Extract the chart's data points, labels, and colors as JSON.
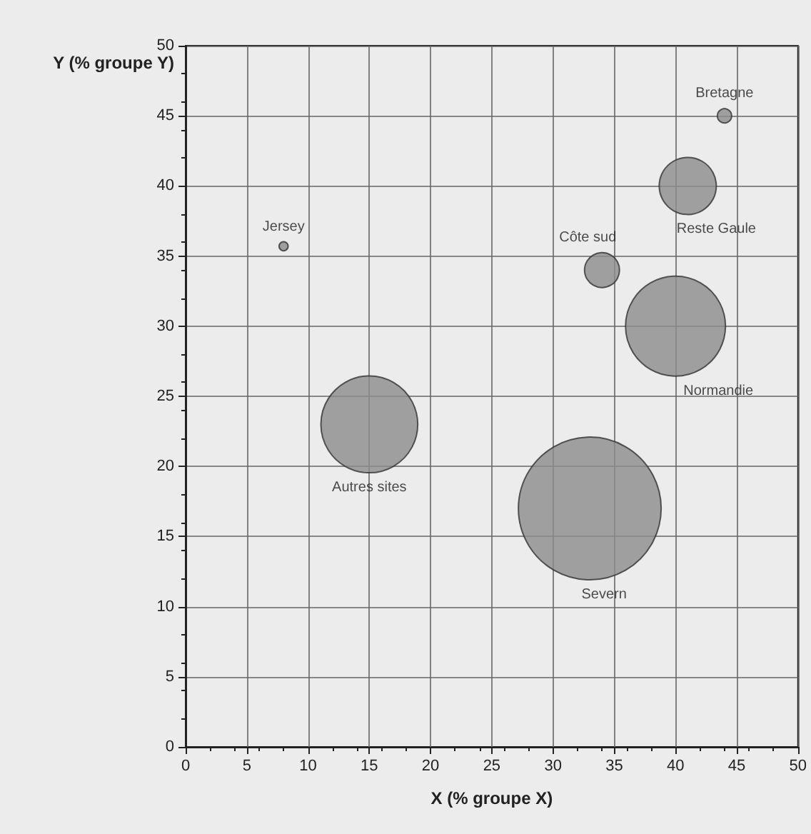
{
  "chart_data": {
    "type": "bubble",
    "xlabel": "X (% groupe X)",
    "ylabel": "Y (% groupe Y)",
    "xlim": [
      0,
      50
    ],
    "xticks": [
      0,
      5,
      10,
      15,
      20,
      25,
      30,
      35,
      40,
      45,
      50
    ],
    "ylim": [
      0,
      50
    ],
    "yticks": [
      0,
      5,
      10,
      15,
      20,
      25,
      30,
      35,
      40,
      45,
      50
    ],
    "grid": true,
    "legend": false,
    "series": [
      {
        "name": "Bretagne",
        "color": "#8c8c8c",
        "x": [
          44
        ],
        "values": [
          45
        ],
        "sizes": [
          0.01
        ]
      },
      {
        "name": "Reste Gaule",
        "color": "#8c8c8c",
        "x": [
          41
        ],
        "values": [
          40
        ],
        "sizes": [
          0.16
        ]
      },
      {
        "name": "Côte sud",
        "color": "#8c8c8c",
        "x": [
          34
        ],
        "values": [
          34
        ],
        "sizes": [
          0.06
        ]
      },
      {
        "name": "Jersey",
        "color": "#8c8c8c",
        "x": [
          8
        ],
        "values": [
          35.7
        ],
        "sizes": [
          0.004
        ]
      },
      {
        "name": "Normandie",
        "color": "#8c8c8c",
        "x": [
          40
        ],
        "values": [
          30
        ],
        "sizes": [
          0.49
        ]
      },
      {
        "name": "Autres sites",
        "color": "#8c8c8c",
        "x": [
          15
        ],
        "values": [
          23
        ],
        "sizes": [
          0.46
        ]
      },
      {
        "name": "Severn",
        "color": "#8c8c8c",
        "x": [
          33
        ],
        "values": [
          17
        ],
        "sizes": [
          1
        ]
      }
    ]
  }
}
